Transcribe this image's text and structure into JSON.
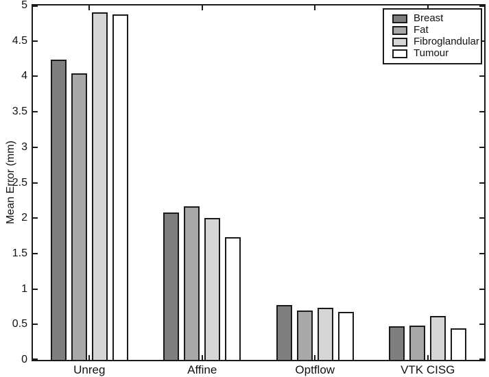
{
  "figure": {
    "background": "#ffffff",
    "axis_color": "#1a1a1a"
  },
  "chart_data": {
    "type": "bar",
    "title": "",
    "xlabel": "",
    "ylabel": "Mean Error (mm)",
    "ylim": [
      0,
      5
    ],
    "ytick_step": 0.5,
    "ytick_labels": [
      "0",
      "0.5",
      "1",
      "1.5",
      "2",
      "2.5",
      "3",
      "3.5",
      "4",
      "4.5",
      "5"
    ],
    "grid": "off",
    "legend_position": "top-right",
    "categories": [
      "Unreg",
      "Affine",
      "Optflow",
      "VTK CISG"
    ],
    "series": [
      {
        "name": "Breast",
        "color": "#7f7f7f",
        "values": [
          4.24,
          2.08,
          0.77,
          0.47
        ]
      },
      {
        "name": "Fat",
        "color": "#a8a8a8",
        "values": [
          4.04,
          2.17,
          0.7,
          0.48
        ]
      },
      {
        "name": "Fibroglandular",
        "color": "#d6d6d6",
        "values": [
          4.9,
          2.0,
          0.74,
          0.62
        ]
      },
      {
        "name": "Tumour",
        "color": "#ffffff",
        "values": [
          4.87,
          1.73,
          0.68,
          0.45
        ]
      }
    ]
  }
}
